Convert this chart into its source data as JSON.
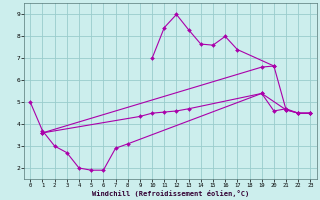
{
  "xlabel": "Windchill (Refroidissement éolien,°C)",
  "bg_color": "#cceeed",
  "line_color": "#aa00aa",
  "grid_color": "#99cccc",
  "xlim": [
    -0.5,
    23.5
  ],
  "ylim": [
    1.5,
    9.5
  ],
  "xticks": [
    0,
    1,
    2,
    3,
    4,
    5,
    6,
    7,
    8,
    9,
    10,
    11,
    12,
    13,
    14,
    15,
    16,
    17,
    18,
    19,
    20,
    21,
    22,
    23
  ],
  "yticks": [
    2,
    3,
    4,
    5,
    6,
    7,
    8,
    9
  ],
  "line1_x": [
    0,
    1,
    2,
    3,
    4,
    5,
    6,
    7,
    8,
    19,
    20,
    21,
    22,
    23
  ],
  "line1_y": [
    5.0,
    3.7,
    3.0,
    2.7,
    2.0,
    1.9,
    1.9,
    2.9,
    3.1,
    5.4,
    4.6,
    4.7,
    4.5,
    4.5
  ],
  "line2_x": [
    1,
    9,
    10,
    11,
    12,
    13,
    19,
    21,
    22,
    23
  ],
  "line2_y": [
    3.6,
    4.35,
    4.5,
    4.55,
    4.6,
    4.7,
    5.4,
    4.65,
    4.5,
    4.5
  ],
  "line3_x": [
    1,
    19,
    20,
    21,
    22,
    23
  ],
  "line3_y": [
    3.6,
    6.6,
    6.65,
    4.65,
    4.5,
    4.5
  ],
  "line4_x": [
    10,
    11,
    12,
    13,
    14,
    15,
    16,
    17,
    20
  ],
  "line4_y": [
    7.0,
    8.4,
    9.0,
    8.3,
    7.65,
    7.6,
    8.0,
    7.4,
    6.65
  ]
}
